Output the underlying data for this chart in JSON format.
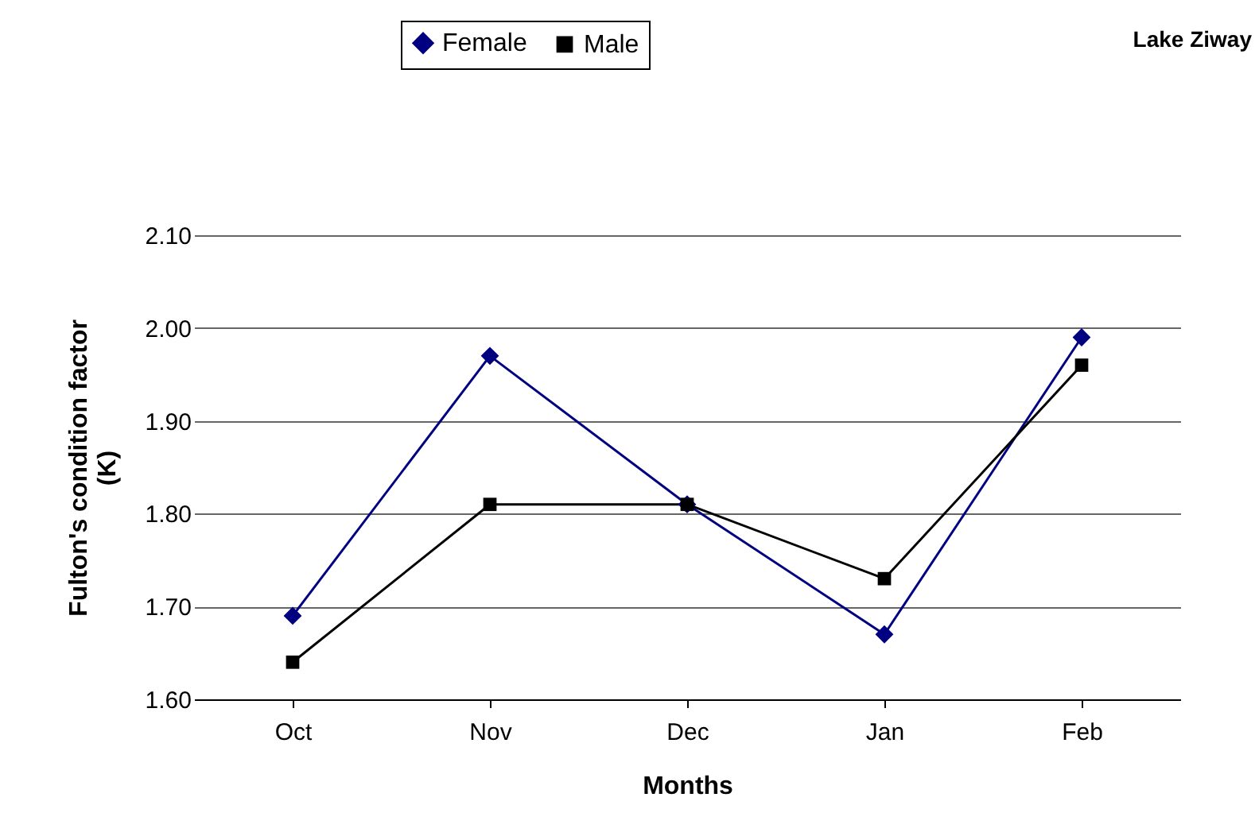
{
  "chart_data": {
    "type": "line",
    "title": "Lake Ziway",
    "xlabel": "Months",
    "ylabel": "Fulton's condition factor (K)",
    "categories": [
      "Oct",
      "Nov",
      "Dec",
      "Jan",
      "Feb"
    ],
    "series": [
      {
        "name": "Female",
        "color": "#000080",
        "marker": "diamond",
        "values": [
          1.69,
          1.97,
          1.81,
          1.67,
          1.99
        ]
      },
      {
        "name": "Male",
        "color": "#000000",
        "marker": "square",
        "values": [
          1.64,
          1.81,
          1.81,
          1.73,
          1.96
        ]
      }
    ],
    "ylim": [
      1.6,
      2.1
    ],
    "yticks": [
      {
        "value": 1.6,
        "label": "1.60"
      },
      {
        "value": 1.7,
        "label": "1.70"
      },
      {
        "value": 1.8,
        "label": "1.80"
      },
      {
        "value": 1.9,
        "label": "1.90"
      },
      {
        "value": 2.0,
        "label": "2.00"
      },
      {
        "value": 2.1,
        "label": "2.10"
      }
    ],
    "grid": "y",
    "legend": "top",
    "line_style": "solid"
  }
}
